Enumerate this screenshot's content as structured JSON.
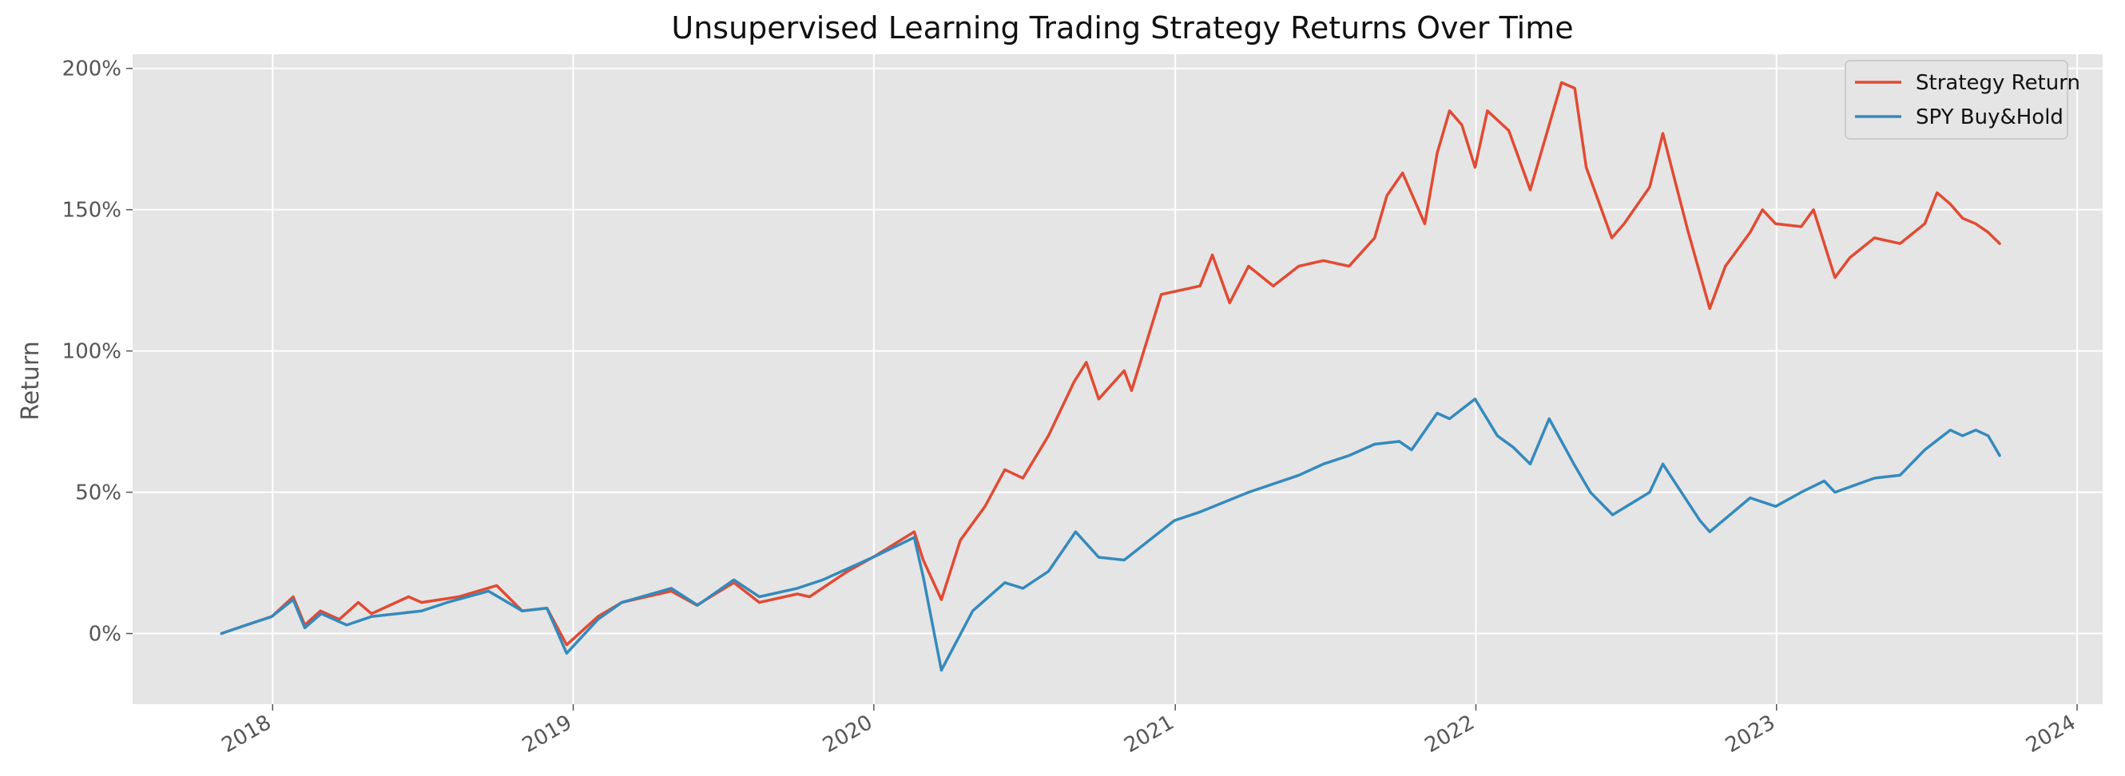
{
  "chart_data": {
    "type": "line",
    "title": "Unsupervised Learning Trading Strategy Returns Over Time",
    "xlabel": "",
    "ylabel": "Return",
    "x_ticks": [
      "2018",
      "2019",
      "2020",
      "2021",
      "2022",
      "2023",
      "2024"
    ],
    "y_ticks": [
      "0%",
      "50%",
      "100%",
      "150%",
      "200%"
    ],
    "y_tick_values": [
      0,
      0.5,
      1.0,
      1.5,
      2.0
    ],
    "xlim": [
      "2017-07-15",
      "2024-02-01"
    ],
    "ylim": [
      -0.25,
      2.05
    ],
    "grid": true,
    "legend_position": "top-right",
    "background": "#e5e5e5",
    "colors": {
      "strategy": "#e24a33",
      "spy": "#348abd"
    },
    "series": [
      {
        "name": "Strategy Return",
        "color": "#e24a33",
        "points": [
          [
            "2017-10-31",
            0.0
          ],
          [
            "2017-11-30",
            0.03
          ],
          [
            "2017-12-31",
            0.06
          ],
          [
            "2018-01-26",
            0.13
          ],
          [
            "2018-02-09",
            0.03
          ],
          [
            "2018-02-28",
            0.08
          ],
          [
            "2018-03-23",
            0.05
          ],
          [
            "2018-04-15",
            0.11
          ],
          [
            "2018-05-01",
            0.07
          ],
          [
            "2018-06-15",
            0.13
          ],
          [
            "2018-07-01",
            0.11
          ],
          [
            "2018-08-15",
            0.13
          ],
          [
            "2018-09-30",
            0.17
          ],
          [
            "2018-10-31",
            0.08
          ],
          [
            "2018-11-30",
            0.09
          ],
          [
            "2018-12-24",
            -0.04
          ],
          [
            "2019-01-31",
            0.06
          ],
          [
            "2019-03-01",
            0.11
          ],
          [
            "2019-04-30",
            0.15
          ],
          [
            "2019-05-31",
            0.1
          ],
          [
            "2019-07-15",
            0.18
          ],
          [
            "2019-08-15",
            0.11
          ],
          [
            "2019-09-30",
            0.14
          ],
          [
            "2019-10-15",
            0.13
          ],
          [
            "2019-11-30",
            0.22
          ],
          [
            "2019-12-31",
            0.27
          ],
          [
            "2020-02-19",
            0.36
          ],
          [
            "2020-03-01",
            0.26
          ],
          [
            "2020-03-23",
            0.12
          ],
          [
            "2020-04-15",
            0.33
          ],
          [
            "2020-05-15",
            0.45
          ],
          [
            "2020-06-08",
            0.58
          ],
          [
            "2020-06-30",
            0.55
          ],
          [
            "2020-07-31",
            0.7
          ],
          [
            "2020-08-31",
            0.89
          ],
          [
            "2020-09-15",
            0.96
          ],
          [
            "2020-09-30",
            0.83
          ],
          [
            "2020-10-31",
            0.93
          ],
          [
            "2020-11-09",
            0.86
          ],
          [
            "2020-12-15",
            1.2
          ],
          [
            "2021-01-31",
            1.23
          ],
          [
            "2021-02-15",
            1.34
          ],
          [
            "2021-03-08",
            1.17
          ],
          [
            "2021-03-31",
            1.3
          ],
          [
            "2021-04-30",
            1.23
          ],
          [
            "2021-05-31",
            1.3
          ],
          [
            "2021-06-30",
            1.32
          ],
          [
            "2021-07-31",
            1.3
          ],
          [
            "2021-08-31",
            1.4
          ],
          [
            "2021-09-15",
            1.55
          ],
          [
            "2021-10-04",
            1.63
          ],
          [
            "2021-10-31",
            1.45
          ],
          [
            "2021-11-15",
            1.7
          ],
          [
            "2021-11-30",
            1.85
          ],
          [
            "2021-12-15",
            1.8
          ],
          [
            "2021-12-31",
            1.65
          ],
          [
            "2022-01-15",
            1.85
          ],
          [
            "2022-02-10",
            1.78
          ],
          [
            "2022-03-08",
            1.57
          ],
          [
            "2022-03-31",
            1.8
          ],
          [
            "2022-04-15",
            1.95
          ],
          [
            "2022-05-01",
            1.93
          ],
          [
            "2022-05-15",
            1.65
          ],
          [
            "2022-06-15",
            1.4
          ],
          [
            "2022-06-30",
            1.45
          ],
          [
            "2022-07-31",
            1.58
          ],
          [
            "2022-08-16",
            1.77
          ],
          [
            "2022-08-31",
            1.6
          ],
          [
            "2022-09-15",
            1.43
          ],
          [
            "2022-10-12",
            1.15
          ],
          [
            "2022-10-31",
            1.3
          ],
          [
            "2022-11-30",
            1.42
          ],
          [
            "2022-12-15",
            1.5
          ],
          [
            "2022-12-31",
            1.45
          ],
          [
            "2023-01-31",
            1.44
          ],
          [
            "2023-02-15",
            1.5
          ],
          [
            "2023-03-13",
            1.26
          ],
          [
            "2023-03-31",
            1.33
          ],
          [
            "2023-04-30",
            1.4
          ],
          [
            "2023-05-31",
            1.38
          ],
          [
            "2023-06-30",
            1.45
          ],
          [
            "2023-07-15",
            1.56
          ],
          [
            "2023-07-31",
            1.52
          ],
          [
            "2023-08-15",
            1.47
          ],
          [
            "2023-08-31",
            1.45
          ],
          [
            "2023-09-15",
            1.42
          ],
          [
            "2023-09-29",
            1.38
          ]
        ]
      },
      {
        "name": "SPY Buy&Hold",
        "color": "#348abd",
        "points": [
          [
            "2017-10-31",
            0.0
          ],
          [
            "2017-11-30",
            0.03
          ],
          [
            "2017-12-31",
            0.06
          ],
          [
            "2018-01-26",
            0.12
          ],
          [
            "2018-02-09",
            0.02
          ],
          [
            "2018-03-01",
            0.07
          ],
          [
            "2018-04-01",
            0.03
          ],
          [
            "2018-05-01",
            0.06
          ],
          [
            "2018-06-01",
            0.07
          ],
          [
            "2018-07-01",
            0.08
          ],
          [
            "2018-08-01",
            0.11
          ],
          [
            "2018-09-20",
            0.15
          ],
          [
            "2018-10-31",
            0.08
          ],
          [
            "2018-11-30",
            0.09
          ],
          [
            "2018-12-24",
            -0.07
          ],
          [
            "2019-01-31",
            0.05
          ],
          [
            "2019-03-01",
            0.11
          ],
          [
            "2019-04-30",
            0.16
          ],
          [
            "2019-06-01",
            0.1
          ],
          [
            "2019-07-15",
            0.19
          ],
          [
            "2019-08-15",
            0.13
          ],
          [
            "2019-09-30",
            0.16
          ],
          [
            "2019-10-31",
            0.19
          ],
          [
            "2019-12-31",
            0.27
          ],
          [
            "2020-02-19",
            0.34
          ],
          [
            "2020-03-01",
            0.2
          ],
          [
            "2020-03-23",
            -0.13
          ],
          [
            "2020-04-30",
            0.08
          ],
          [
            "2020-06-08",
            0.18
          ],
          [
            "2020-06-30",
            0.16
          ],
          [
            "2020-07-31",
            0.22
          ],
          [
            "2020-09-02",
            0.36
          ],
          [
            "2020-09-30",
            0.27
          ],
          [
            "2020-10-31",
            0.26
          ],
          [
            "2020-12-31",
            0.4
          ],
          [
            "2021-01-31",
            0.43
          ],
          [
            "2021-03-31",
            0.5
          ],
          [
            "2021-05-31",
            0.56
          ],
          [
            "2021-06-30",
            0.6
          ],
          [
            "2021-07-31",
            0.63
          ],
          [
            "2021-08-31",
            0.67
          ],
          [
            "2021-09-30",
            0.68
          ],
          [
            "2021-10-15",
            0.65
          ],
          [
            "2021-11-15",
            0.78
          ],
          [
            "2021-11-30",
            0.76
          ],
          [
            "2021-12-31",
            0.83
          ],
          [
            "2022-01-27",
            0.7
          ],
          [
            "2022-02-15",
            0.66
          ],
          [
            "2022-03-08",
            0.6
          ],
          [
            "2022-03-31",
            0.76
          ],
          [
            "2022-04-30",
            0.6
          ],
          [
            "2022-05-20",
            0.5
          ],
          [
            "2022-06-16",
            0.42
          ],
          [
            "2022-07-31",
            0.5
          ],
          [
            "2022-08-16",
            0.6
          ],
          [
            "2022-09-30",
            0.4
          ],
          [
            "2022-10-12",
            0.36
          ],
          [
            "2022-11-30",
            0.48
          ],
          [
            "2022-12-31",
            0.45
          ],
          [
            "2023-01-31",
            0.5
          ],
          [
            "2023-02-28",
            0.54
          ],
          [
            "2023-03-13",
            0.5
          ],
          [
            "2023-04-30",
            0.55
          ],
          [
            "2023-05-31",
            0.56
          ],
          [
            "2023-06-30",
            0.65
          ],
          [
            "2023-07-31",
            0.72
          ],
          [
            "2023-08-15",
            0.7
          ],
          [
            "2023-08-31",
            0.72
          ],
          [
            "2023-09-15",
            0.7
          ],
          [
            "2023-09-29",
            0.63
          ]
        ]
      }
    ]
  }
}
